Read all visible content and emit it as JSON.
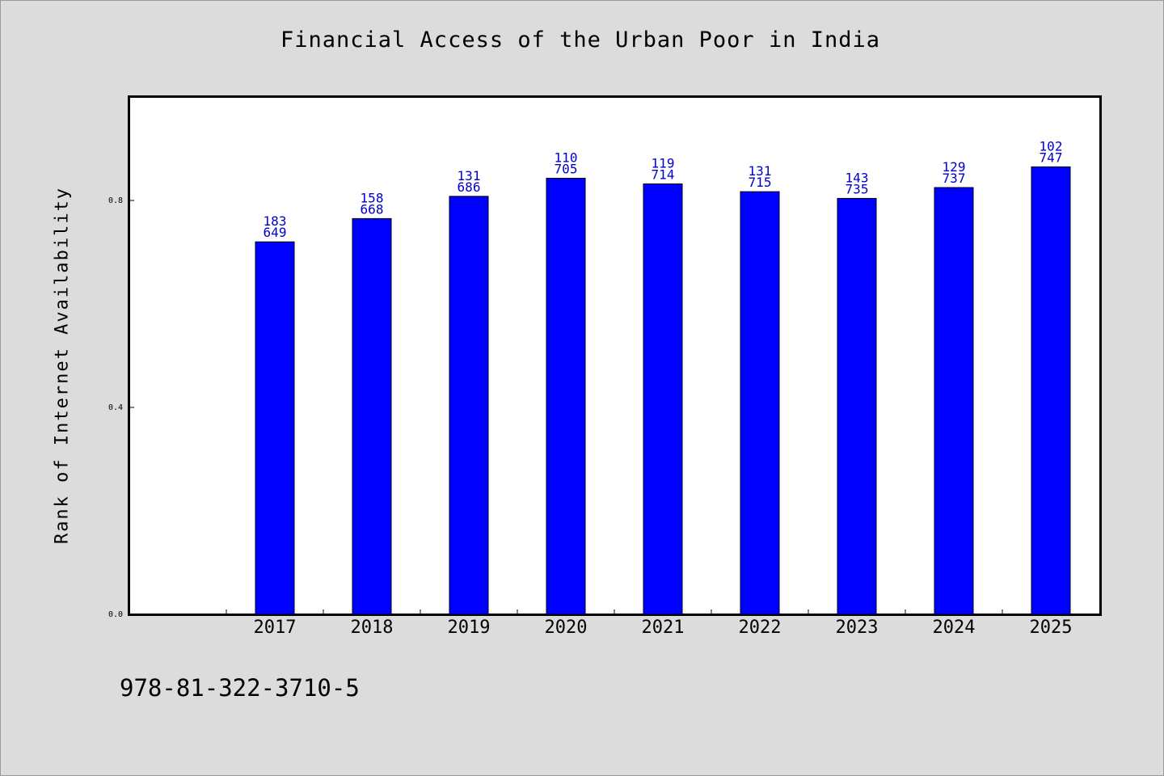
{
  "chart_data": {
    "type": "bar",
    "title": "Financial Access of the Urban Poor in India",
    "ylabel": "Rank of Internet Availability",
    "xlabel": "",
    "categories": [
      "2017",
      "2018",
      "2019",
      "2020",
      "2021",
      "2022",
      "2023",
      "2024",
      "2025"
    ],
    "values": [
      0.72,
      0.765,
      0.808,
      0.843,
      0.832,
      0.817,
      0.804,
      0.825,
      0.865
    ],
    "bar_labels": [
      [
        "183",
        "649"
      ],
      [
        "158",
        "668"
      ],
      [
        "131",
        "686"
      ],
      [
        "110",
        "705"
      ],
      [
        "119",
        "714"
      ],
      [
        "131",
        "715"
      ],
      [
        "143",
        "735"
      ],
      [
        "129",
        "737"
      ],
      [
        "102",
        "747"
      ]
    ],
    "yticks": [
      0.0,
      0.4,
      0.8
    ],
    "ytick_labels": [
      "0.0",
      "0.4",
      "0.8"
    ],
    "ylim": [
      0,
      1.0
    ],
    "grid": false,
    "legend": "none",
    "colors": {
      "bar": "#0000ff",
      "bar_label": "#0000cc",
      "background": "#dcdcdc",
      "plot_background": "#ffffff"
    }
  },
  "footer": {
    "isbn": "978-81-322-3710-5"
  }
}
